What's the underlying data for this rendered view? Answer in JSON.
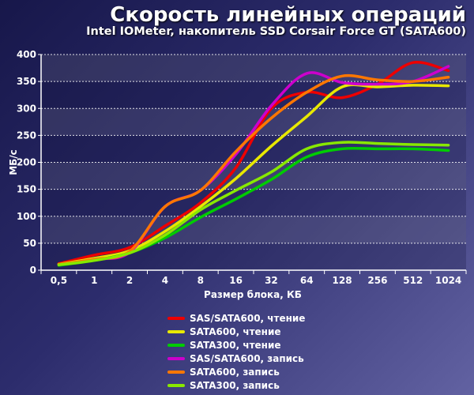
{
  "header": {
    "title": "Скорость линейных операций",
    "subtitle": "Intel IOMeter, накопитель SSD Corsair Force GT (SATA600)"
  },
  "chart_data": {
    "type": "line",
    "title": "Скорость линейных операций",
    "subtitle": "Intel IOMeter, накопитель SSD Corsair Force GT (SATA600)",
    "xlabel": "Размер блока, КБ",
    "ylabel": "МБ/с",
    "categories": [
      "0,5",
      "1",
      "2",
      "4",
      "8",
      "16",
      "32",
      "64",
      "128",
      "256",
      "512",
      "1024"
    ],
    "ylim": [
      0,
      400
    ],
    "yticks": [
      0,
      50,
      100,
      150,
      200,
      250,
      300,
      350,
      400
    ],
    "grid": true,
    "legend_position": "bottom",
    "series": [
      {
        "name": "SAS/SATA600, чтение",
        "color": "#ee0000",
        "values": [
          12,
          28,
          42,
          82,
          125,
          190,
          300,
          330,
          320,
          345,
          385,
          370
        ]
      },
      {
        "name": "SATA600, чтение",
        "color": "#e8e800",
        "values": [
          11,
          22,
          36,
          72,
          118,
          170,
          230,
          285,
          340,
          340,
          343,
          342
        ]
      },
      {
        "name": "SATA300, чтение",
        "color": "#00cc00",
        "values": [
          9,
          18,
          32,
          60,
          98,
          132,
          168,
          210,
          225,
          225,
          225,
          222
        ]
      },
      {
        "name": "SAS/SATA600, запись",
        "color": "#cc00cc",
        "values": [
          10,
          20,
          33,
          118,
          148,
          215,
          305,
          365,
          348,
          345,
          350,
          378
        ]
      },
      {
        "name": "SATA600, запись",
        "color": "#ff7700",
        "values": [
          11,
          20,
          35,
          118,
          148,
          220,
          282,
          330,
          360,
          353,
          350,
          358
        ]
      },
      {
        "name": "SATA300, запись",
        "color": "#88e800",
        "values": [
          10,
          18,
          32,
          65,
          112,
          148,
          182,
          225,
          237,
          235,
          233,
          232
        ]
      }
    ]
  }
}
